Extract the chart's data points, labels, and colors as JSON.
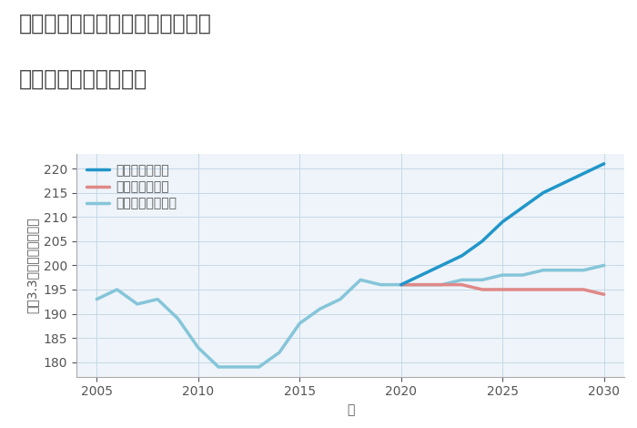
{
  "title_line1": "神奈川県川崎市高津区千年新町の",
  "title_line2": "中古戸建ての価格推移",
  "xlabel": "年",
  "ylabel": "坪（3.3㎡）単価（万円）",
  "ylim": [
    177,
    223
  ],
  "yticks": [
    180,
    185,
    190,
    195,
    200,
    205,
    210,
    215,
    220
  ],
  "xlim": [
    2004,
    2031
  ],
  "xticks": [
    2005,
    2010,
    2015,
    2020,
    2025,
    2030
  ],
  "bg_color": "#eef4f9",
  "grid_color": "#c5d8e8",
  "normal_scenario": {
    "label": "ノーマルシナリオ",
    "color": "#85c5d9",
    "linewidth": 2.5,
    "x": [
      2005,
      2006,
      2007,
      2008,
      2009,
      2010,
      2011,
      2012,
      2013,
      2014,
      2015,
      2016,
      2017,
      2018,
      2019,
      2020,
      2021,
      2022,
      2023,
      2024,
      2025,
      2026,
      2027,
      2028,
      2029,
      2030
    ],
    "y": [
      193,
      195,
      192,
      193,
      189,
      183,
      179,
      179,
      179,
      182,
      188,
      191,
      193,
      197,
      196,
      196,
      196,
      196,
      197,
      197,
      198,
      198,
      199,
      199,
      199,
      200
    ]
  },
  "good_scenario": {
    "label": "グッドシナリオ",
    "color": "#2196c9",
    "linewidth": 2.5,
    "x": [
      2020,
      2021,
      2022,
      2023,
      2024,
      2025,
      2026,
      2027,
      2028,
      2029,
      2030
    ],
    "y": [
      196,
      198,
      200,
      202,
      205,
      209,
      212,
      215,
      217,
      219,
      221
    ]
  },
  "bad_scenario": {
    "label": "バッドシナリオ",
    "color": "#e08888",
    "linewidth": 2.5,
    "x": [
      2020,
      2021,
      2022,
      2023,
      2024,
      2025,
      2026,
      2027,
      2028,
      2029,
      2030
    ],
    "y": [
      196,
      196,
      196,
      196,
      195,
      195,
      195,
      195,
      195,
      195,
      194
    ]
  },
  "title_color": "#444444",
  "title_fontsize": 17,
  "axis_label_fontsize": 10,
  "tick_fontsize": 10,
  "legend_fontsize": 10
}
